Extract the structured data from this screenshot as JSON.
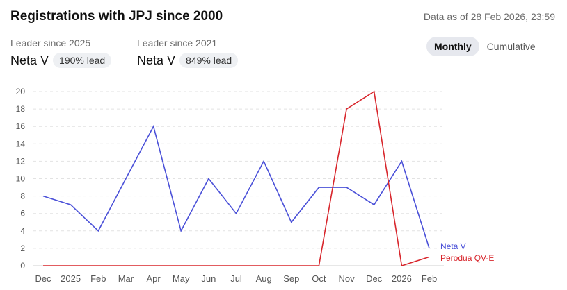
{
  "header": {
    "title": "Registrations with JPJ since 2000",
    "as_of": "Data as of 28 Feb 2026, 23:59"
  },
  "leaders": [
    {
      "label": "Leader since 2025",
      "name": "Neta V",
      "lead": "190% lead"
    },
    {
      "label": "Leader since 2021",
      "name": "Neta V",
      "lead": "849% lead"
    }
  ],
  "toggle": {
    "monthly_label": "Monthly",
    "cumulative_label": "Cumulative",
    "selected": "Monthly"
  },
  "colors": {
    "neta": "#4a50d8",
    "perodua": "#d8262c",
    "grid": "#e2e2e2",
    "axis_text": "#555555"
  },
  "chart_data": {
    "type": "line",
    "categories": [
      "Dec",
      "2025",
      "Feb",
      "Mar",
      "Apr",
      "May",
      "Jun",
      "Jul",
      "Aug",
      "Sep",
      "Oct",
      "Nov",
      "Dec",
      "2026",
      "Feb"
    ],
    "ylim": [
      0,
      20
    ],
    "yticks": [
      0,
      2,
      4,
      6,
      8,
      10,
      12,
      14,
      16,
      18,
      20
    ],
    "grid": true,
    "legend": "right-end",
    "series": [
      {
        "name": "Neta V",
        "color": "#4a50d8",
        "values": [
          8,
          7,
          4,
          10,
          16,
          4,
          10,
          6,
          12,
          5,
          9,
          9,
          7,
          12,
          2
        ]
      },
      {
        "name": "Perodua QV-E",
        "color": "#d8262c",
        "values": [
          0,
          0,
          0,
          0,
          0,
          0,
          0,
          0,
          0,
          0,
          0,
          18,
          20,
          0,
          1
        ]
      }
    ]
  }
}
